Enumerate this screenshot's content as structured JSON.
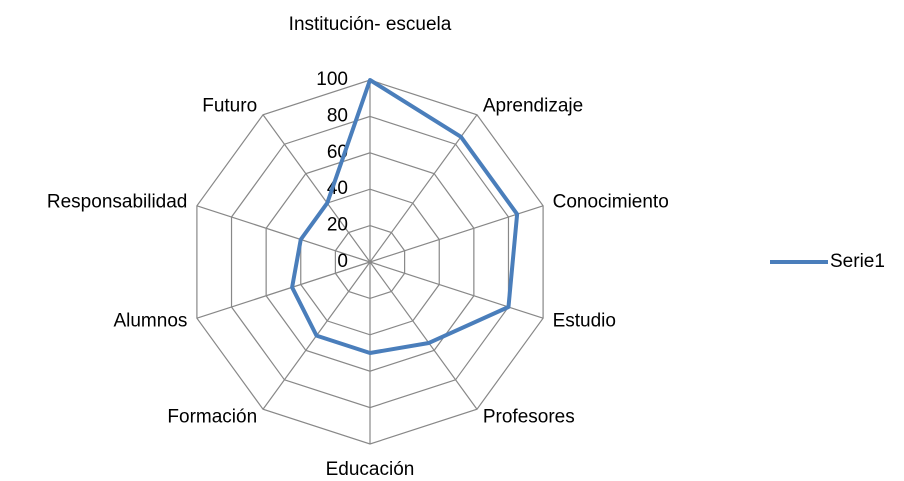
{
  "chart_data": {
    "type": "radar",
    "categories": [
      "Institución- escuela",
      "Aprendizaje",
      "Conocimiento",
      "Estudio",
      "Profesores",
      "Educación",
      "Formación",
      "Alumnos",
      "Responsabilidad",
      "Futuro"
    ],
    "series": [
      {
        "name": "Serie1",
        "color": "#4a7ebb",
        "values": [
          100,
          85,
          85,
          80,
          55,
          50,
          50,
          45,
          40,
          40
        ]
      }
    ],
    "ylim": [
      0,
      100
    ],
    "yticks": [
      0,
      20,
      40,
      60,
      80,
      100
    ],
    "grid": true,
    "legend": "right"
  }
}
